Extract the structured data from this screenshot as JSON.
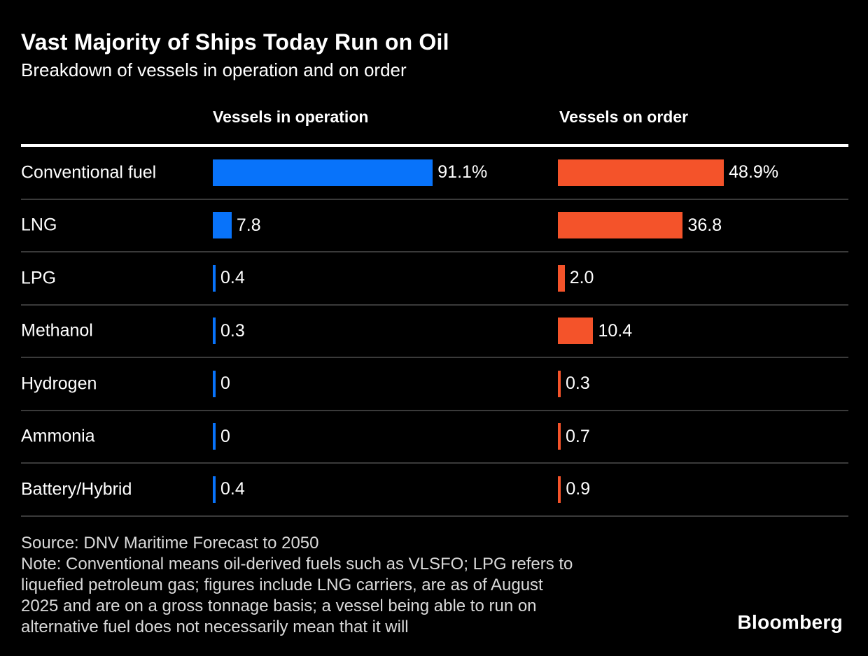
{
  "header": {
    "title": "Vast Majority of Ships Today Run on Oil",
    "subtitle": "Breakdown of vessels in operation and on order"
  },
  "columns": {
    "left": "Vessels in operation",
    "right": "Vessels on order"
  },
  "chart_data": {
    "type": "bar",
    "orientation": "horizontal",
    "title": "Vast Majority of Ships Today Run on Oil",
    "subtitle": "Breakdown of vessels in operation and on order",
    "categories": [
      "Conventional fuel",
      "LNG",
      "LPG",
      "Methanol",
      "Hydrogen",
      "Ammonia",
      "Battery/Hybrid"
    ],
    "series": [
      {
        "name": "Vessels in operation",
        "color": "#0873fa",
        "values": [
          91.1,
          7.8,
          0.4,
          0.3,
          0,
          0,
          0.4
        ],
        "labels": [
          "91.1%",
          "7.8",
          "0.4",
          "0.3",
          "0",
          "0",
          "0.4"
        ]
      },
      {
        "name": "Vessels on order",
        "color": "#f4532a",
        "values": [
          48.9,
          36.8,
          2.0,
          10.4,
          0.3,
          0.7,
          0.9
        ],
        "labels": [
          "48.9%",
          "36.8",
          "2.0",
          "10.4",
          "0.3",
          "0.7",
          "0.9"
        ]
      }
    ],
    "value_unit": "percent",
    "grid": false,
    "legend_position": "column-headers"
  },
  "footer": {
    "source_line": "Source: DNV Maritime Forecast to 2050",
    "note_lines": [
      "Source: DNV Maritime Forecast to 2050",
      "Note: Conventional means oil-derived fuels such as VLSFO; LPG refers to",
      "liquefied petroleum gas; figures include LNG carriers, are as of August",
      "2025 and are on a gross tonnage basis; a vessel being able to run on",
      "alternative fuel does not necessarily mean that it will"
    ],
    "logo": "Bloomberg"
  },
  "colors": {
    "background": "#000000",
    "bar_in_operation": "#0873fa",
    "bar_on_order": "#f4532a",
    "header_rule": "#ffffff",
    "row_divider": "#3a3a3a",
    "footer_text": "#d9d9d9",
    "text": "#ffffff"
  }
}
